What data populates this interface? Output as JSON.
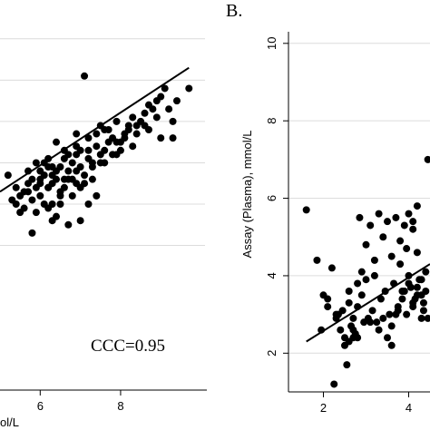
{
  "chart_data": [
    {
      "type": "scatter",
      "panel_label": "",
      "xlabel": "ol/L",
      "ylabel": "",
      "xlim": [
        5.0,
        10.1
      ],
      "ylim": [
        1.5,
        10.5
      ],
      "x_ticks": [
        6,
        8
      ],
      "x_tick_labels": [
        "6",
        "8"
      ],
      "y_ticks": [],
      "grid": "horizontal",
      "annotation": "CCC=0.95",
      "fit_line": {
        "x": [
          5.0,
          9.7
        ],
        "y": [
          6.3,
          9.3
        ]
      },
      "points": {
        "x": [
          7.1,
          9.7,
          9.1,
          8.9,
          8.7,
          9.0,
          8.5,
          8.2,
          8.6,
          8.8,
          9.2,
          9.4,
          9.3,
          8.4,
          8.3,
          8.0,
          7.9,
          7.8,
          7.6,
          7.5,
          7.4,
          7.3,
          7.2,
          7.0,
          6.9,
          6.8,
          6.7,
          6.6,
          6.5,
          6.4,
          6.3,
          6.2,
          6.1,
          6.0,
          5.9,
          5.8,
          5.7,
          5.6,
          5.5,
          5.4,
          5.3,
          5.2,
          7.6,
          7.9,
          8.1,
          8.4,
          7.2,
          7.7,
          7.4,
          6.6,
          6.4,
          6.2,
          6.9,
          7.0,
          6.1,
          5.9,
          5.7,
          6.0,
          6.3,
          6.5,
          6.8,
          7.1,
          7.3,
          7.5,
          7.8,
          8.0,
          8.2,
          6.3,
          6.6,
          6.9,
          5.8,
          6.2,
          6.4,
          6.7,
          7.0,
          7.2,
          7.4,
          6.5,
          6.1,
          5.9,
          6.3,
          6.8,
          7.1,
          5.6,
          5.4,
          5.8,
          6.0,
          6.2,
          6.6,
          6.4,
          6.9,
          7.3,
          7.6,
          6.7,
          6.5,
          6.2,
          5.7,
          5.5,
          6.0,
          6.3,
          6.7,
          7.0,
          8.6,
          8.9,
          9.3,
          9.0,
          8.7,
          8.3,
          7.7,
          7.9,
          8.1,
          7.5,
          7.2,
          6.9
        ],
        "y": [
          9.1,
          8.8,
          8.8,
          8.5,
          8.4,
          8.6,
          8.0,
          7.9,
          8.2,
          8.3,
          8.3,
          8.5,
          7.6,
          7.7,
          7.4,
          7.5,
          7.5,
          7.6,
          7.3,
          7.2,
          7.4,
          7.0,
          7.1,
          6.9,
          7.2,
          7.0,
          6.8,
          7.1,
          6.9,
          6.6,
          6.5,
          6.9,
          6.7,
          6.6,
          6.4,
          6.6,
          6.5,
          6.3,
          6.2,
          6.4,
          6.1,
          6.7,
          7.8,
          8.0,
          7.7,
          7.9,
          7.6,
          7.5,
          7.7,
          7.3,
          7.5,
          7.1,
          7.4,
          7.3,
          7.0,
          7.0,
          6.8,
          6.2,
          6.0,
          6.3,
          6.6,
          6.7,
          6.9,
          7.0,
          7.2,
          7.3,
          7.8,
          6.7,
          6.6,
          6.5,
          6.1,
          5.9,
          5.7,
          5.5,
          5.6,
          6.0,
          6.2,
          6.2,
          6.0,
          5.8,
          5.6,
          6.2,
          6.5,
          5.9,
          6.0,
          5.3,
          6.8,
          6.4,
          6.4,
          6.8,
          6.8,
          6.6,
          7.0,
          6.6,
          6.0,
          6.4,
          6.3,
          5.8,
          6.5,
          6.9,
          7.2,
          6.4,
          7.9,
          8.1,
          8.0,
          7.6,
          7.8,
          8.1,
          7.8,
          7.2,
          7.6,
          7.9,
          7.3,
          7.7
        ]
      }
    },
    {
      "type": "scatter",
      "panel_label": "B.",
      "xlabel": "",
      "ylabel": "Assay (Plasma), mmol/L",
      "xlim": [
        1.5,
        4.5
      ],
      "ylim": [
        1.0,
        10.3
      ],
      "x_ticks": [
        2,
        4
      ],
      "x_tick_labels": [
        "2",
        "4"
      ],
      "y_ticks": [
        2,
        4,
        6,
        8,
        10
      ],
      "y_tick_labels": [
        "2",
        "4",
        "6",
        "8",
        "10"
      ],
      "grid": "horizontal",
      "fit_line": {
        "x": [
          1.6,
          4.5
        ],
        "y": [
          2.3,
          4.3
        ]
      },
      "points": {
        "x": [
          1.6,
          1.85,
          1.95,
          2.0,
          2.1,
          2.1,
          2.2,
          2.25,
          2.3,
          2.35,
          2.4,
          2.45,
          2.5,
          2.55,
          2.6,
          2.6,
          2.65,
          2.7,
          2.7,
          2.75,
          2.8,
          2.85,
          2.9,
          2.95,
          3.0,
          3.05,
          3.1,
          3.15,
          3.2,
          3.25,
          3.3,
          3.35,
          3.4,
          3.45,
          3.5,
          3.55,
          3.6,
          3.65,
          3.7,
          3.75,
          3.8,
          3.85,
          3.9,
          3.95,
          4.0,
          4.05,
          4.1,
          4.15,
          4.2,
          4.25,
          4.3,
          4.35,
          4.4,
          4.45,
          3.9,
          4.0,
          4.1,
          4.2,
          4.3,
          4.35,
          4.4,
          4.0,
          4.1,
          4.2,
          4.3,
          3.6,
          3.7,
          3.8,
          2.9,
          3.0,
          3.1,
          3.2,
          2.5,
          2.6,
          2.7,
          2.8,
          4.45,
          4.2,
          4.1,
          3.95,
          3.85,
          3.75,
          3.6,
          3.5,
          3.4,
          3.3,
          2.8,
          2.3
        ],
        "y": [
          5.7,
          4.4,
          2.6,
          3.5,
          3.4,
          3.2,
          4.2,
          1.2,
          2.9,
          3.0,
          2.6,
          3.1,
          2.4,
          1.7,
          3.3,
          2.3,
          2.7,
          2.9,
          2.4,
          2.5,
          3.2,
          5.5,
          4.1,
          2.8,
          4.8,
          2.9,
          5.3,
          3.1,
          4.0,
          2.8,
          5.6,
          3.4,
          5.0,
          3.6,
          5.4,
          3.0,
          4.5,
          3.8,
          5.5,
          3.2,
          4.9,
          3.6,
          5.3,
          3.0,
          5.6,
          3.7,
          5.2,
          3.4,
          4.6,
          3.9,
          3.5,
          3.3,
          4.1,
          7.0,
          3.6,
          3.8,
          3.2,
          3.5,
          3.9,
          3.1,
          3.6,
          4.0,
          3.3,
          3.7,
          2.9,
          2.7,
          3.0,
          4.3,
          3.5,
          3.9,
          2.8,
          4.4,
          2.2,
          3.6,
          2.6,
          3.8,
          2.9,
          5.8,
          5.4,
          4.7,
          3.4,
          3.1,
          2.2,
          2.4,
          2.9,
          2.6,
          2.4,
          3.0
        ]
      }
    }
  ]
}
